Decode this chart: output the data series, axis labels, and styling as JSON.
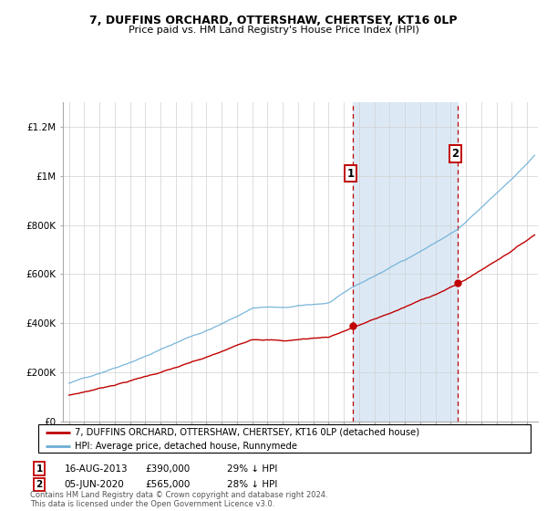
{
  "title": "7, DUFFINS ORCHARD, OTTERSHAW, CHERTSEY, KT16 0LP",
  "subtitle": "Price paid vs. HM Land Registry's House Price Index (HPI)",
  "ylim": [
    0,
    1300000
  ],
  "yticks": [
    0,
    200000,
    400000,
    600000,
    800000,
    1000000,
    1200000
  ],
  "ytick_labels": [
    "£0",
    "£200K",
    "£400K",
    "£600K",
    "£800K",
    "£1M",
    "£1.2M"
  ],
  "hpi_color": "#6baed6",
  "price_color": "#c00000",
  "shade_color": "#dce9f5",
  "marker1_year": 2013.6,
  "marker2_year": 2020.45,
  "marker1_price": 390000,
  "marker2_price": 565000,
  "marker1_date": "16-AUG-2013",
  "marker2_date": "05-JUN-2020",
  "marker1_pct": "29% ↓ HPI",
  "marker2_pct": "28% ↓ HPI",
  "legend_entry1": "7, DUFFINS ORCHARD, OTTERSHAW, CHERTSEY, KT16 0LP (detached house)",
  "legend_entry2": "HPI: Average price, detached house, Runnymede",
  "footer": "Contains HM Land Registry data © Crown copyright and database right 2024.\nThis data is licensed under the Open Government Licence v3.0.",
  "start_year": 1995,
  "end_year": 2025
}
